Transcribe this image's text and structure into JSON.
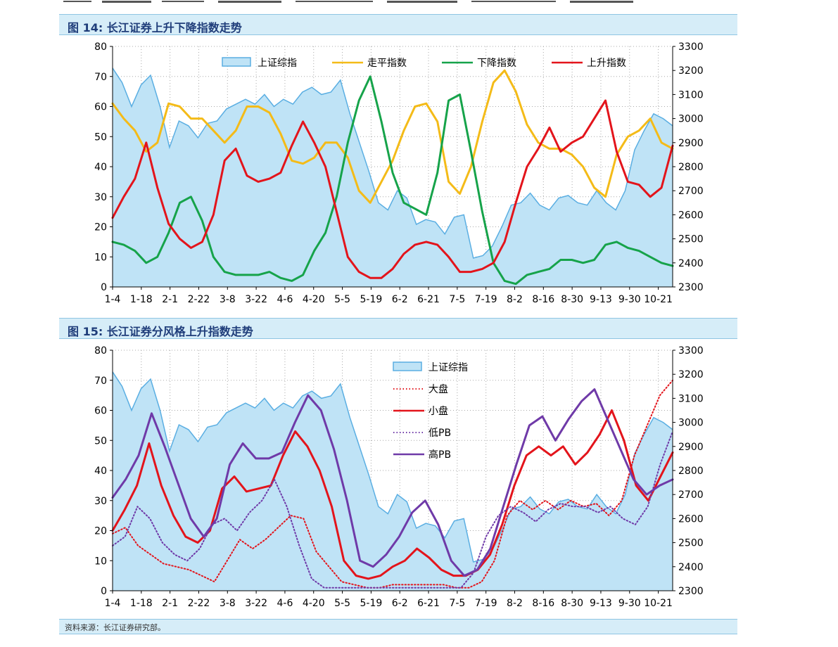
{
  "header": {
    "chart1_title": "图 14:  长江证券上升下降指数走势",
    "chart2_title": "图 15:  长江证券分风格上升指数走势",
    "source": "资料来源：长江证券研究部。"
  },
  "colors": {
    "area_fill": "#bfe3f6",
    "area_stroke": "#5aaee2",
    "flat": "#f4bb18",
    "down": "#16a34a",
    "up": "#e3141b",
    "purple": "#6f3aa8",
    "band": "#d6edf8"
  },
  "chart_data": [
    {
      "type": "line",
      "title": "图 14:  长江证券上升下降指数走势",
      "x_ticks": [
        "1-4",
        "1-18",
        "2-1",
        "2-22",
        "3-8",
        "3-22",
        "4-6",
        "4-20",
        "5-5",
        "5-19",
        "6-2",
        "6-21",
        "7-5",
        "7-19",
        "8-2",
        "8-16",
        "8-30",
        "9-13",
        "9-30",
        "10-21"
      ],
      "ylim_left": [
        0,
        80
      ],
      "y_ticks_left": [
        0,
        10,
        20,
        30,
        40,
        50,
        60,
        70,
        80
      ],
      "ylim_right": [
        2300,
        3300
      ],
      "y_ticks_right": [
        2300,
        2400,
        2500,
        2600,
        2700,
        2800,
        2900,
        3000,
        3100,
        3200,
        3300
      ],
      "grid": true,
      "legend_position": "top",
      "series": [
        {
          "name": "上证综指",
          "axis": "right",
          "style": "area",
          "color": "#5aaee2",
          "values": [
            3210,
            3150,
            3050,
            3140,
            3180,
            3050,
            2880,
            2990,
            2970,
            2920,
            2980,
            2990,
            3040,
            3060,
            3080,
            3060,
            3100,
            3050,
            3080,
            3060,
            3110,
            3130,
            3100,
            3110,
            3160,
            3020,
            2900,
            2780,
            2650,
            2620,
            2700,
            2670,
            2560,
            2580,
            2570,
            2520,
            2590,
            2600,
            2420,
            2430,
            2470,
            2550,
            2640,
            2650,
            2690,
            2640,
            2620,
            2670,
            2680,
            2650,
            2640,
            2700,
            2650,
            2620,
            2700,
            2870,
            2950,
            3020,
            3000,
            2970
          ]
        },
        {
          "name": "走平指数",
          "axis": "left",
          "style": "line",
          "color": "#f4bb18",
          "values": [
            61,
            56,
            52,
            45,
            48,
            61,
            60,
            56,
            56,
            52,
            48,
            52,
            60,
            60,
            58,
            51,
            42,
            41,
            43,
            48,
            48,
            43,
            32,
            28,
            35,
            42,
            52,
            60,
            61,
            55,
            35,
            31,
            40,
            55,
            68,
            72,
            65,
            54,
            48,
            46,
            46,
            44,
            40,
            33,
            30,
            44,
            50,
            52,
            56,
            48,
            46
          ]
        },
        {
          "name": "下降指数",
          "axis": "left",
          "style": "line",
          "color": "#16a34a",
          "values": [
            15,
            14,
            12,
            8,
            10,
            18,
            28,
            30,
            22,
            10,
            5,
            4,
            4,
            4,
            5,
            3,
            2,
            4,
            12,
            18,
            30,
            48,
            62,
            70,
            55,
            38,
            28,
            26,
            24,
            38,
            62,
            64,
            45,
            25,
            8,
            2,
            1,
            4,
            5,
            6,
            9,
            9,
            8,
            9,
            14,
            15,
            13,
            12,
            10,
            8,
            7
          ]
        },
        {
          "name": "上升指数",
          "axis": "left",
          "style": "line",
          "color": "#e3141b",
          "values": [
            23,
            30,
            36,
            48,
            33,
            21,
            16,
            13,
            15,
            24,
            42,
            46,
            37,
            35,
            36,
            38,
            47,
            55,
            48,
            40,
            25,
            10,
            5,
            3,
            3,
            6,
            11,
            14,
            15,
            14,
            10,
            5,
            5,
            6,
            8,
            15,
            28,
            40,
            46,
            53,
            45,
            48,
            50,
            56,
            62,
            45,
            35,
            34,
            30,
            33,
            47
          ]
        }
      ]
    },
    {
      "type": "line",
      "title": "图 15:  长江证券分风格上升指数走势",
      "x_ticks": [
        "1-4",
        "1-18",
        "2-1",
        "2-22",
        "3-8",
        "3-22",
        "4-6",
        "4-20",
        "5-5",
        "5-19",
        "6-2",
        "6-21",
        "7-5",
        "7-19",
        "8-2",
        "8-16",
        "8-30",
        "9-13",
        "9-30",
        "10-21"
      ],
      "ylim_left": [
        0,
        80
      ],
      "y_ticks_left": [
        0,
        10,
        20,
        30,
        40,
        50,
        60,
        70,
        80
      ],
      "ylim_right": [
        2300,
        3300
      ],
      "y_ticks_right": [
        2300,
        2400,
        2500,
        2600,
        2700,
        2800,
        2900,
        3000,
        3100,
        3200,
        3300
      ],
      "grid": true,
      "legend_position": "top-center",
      "series": [
        {
          "name": "上证综指",
          "axis": "right",
          "style": "area",
          "color": "#5aaee2",
          "values": [
            3210,
            3150,
            3050,
            3140,
            3180,
            3050,
            2880,
            2990,
            2970,
            2920,
            2980,
            2990,
            3040,
            3060,
            3080,
            3060,
            3100,
            3050,
            3080,
            3060,
            3110,
            3130,
            3100,
            3110,
            3160,
            3020,
            2900,
            2780,
            2650,
            2620,
            2700,
            2670,
            2560,
            2580,
            2570,
            2520,
            2590,
            2600,
            2420,
            2430,
            2470,
            2550,
            2640,
            2650,
            2690,
            2640,
            2620,
            2670,
            2680,
            2650,
            2640,
            2700,
            2650,
            2620,
            2700,
            2870,
            2950,
            3020,
            3000,
            2970
          ]
        },
        {
          "name": "大盘",
          "axis": "left",
          "style": "dotted",
          "color": "#e3141b",
          "values": [
            19,
            21,
            15,
            12,
            9,
            8,
            7,
            5,
            3,
            10,
            17,
            14,
            17,
            21,
            25,
            24,
            13,
            8,
            3,
            2,
            1,
            1,
            2,
            2,
            2,
            2,
            2,
            1,
            1,
            3,
            10,
            25,
            30,
            27,
            30,
            27,
            30,
            28,
            29,
            25,
            30,
            45,
            55,
            65,
            70
          ]
        },
        {
          "name": "小盘",
          "axis": "left",
          "style": "line",
          "color": "#e3141b",
          "values": [
            20,
            27,
            35,
            49,
            35,
            25,
            18,
            16,
            20,
            34,
            38,
            33,
            34,
            35,
            45,
            53,
            48,
            40,
            28,
            10,
            5,
            4,
            5,
            8,
            10,
            14,
            11,
            7,
            5,
            5,
            7,
            12,
            22,
            35,
            45,
            48,
            45,
            48,
            42,
            46,
            52,
            60,
            50,
            35,
            30,
            38,
            46
          ]
        },
        {
          "name": "低PB",
          "axis": "left",
          "style": "dotted",
          "color": "#6f3aa8",
          "values": [
            15,
            18,
            28,
            24,
            16,
            12,
            10,
            14,
            22,
            24,
            20,
            26,
            30,
            37,
            28,
            15,
            4,
            1,
            1,
            1,
            1,
            1,
            1,
            1,
            1,
            1,
            1,
            1,
            1,
            6,
            18,
            25,
            28,
            26,
            23,
            27,
            29,
            28,
            28,
            26,
            28,
            24,
            22,
            28,
            42,
            53
          ]
        },
        {
          "name": "高PB",
          "axis": "left",
          "style": "line",
          "color": "#6f3aa8",
          "values": [
            31,
            37,
            45,
            59,
            48,
            36,
            24,
            18,
            24,
            42,
            49,
            44,
            44,
            46,
            56,
            65,
            60,
            47,
            30,
            10,
            8,
            12,
            18,
            26,
            30,
            22,
            10,
            5,
            7,
            14,
            28,
            42,
            55,
            58,
            50,
            57,
            63,
            67,
            57,
            47,
            37,
            32,
            35,
            37
          ]
        }
      ]
    }
  ]
}
